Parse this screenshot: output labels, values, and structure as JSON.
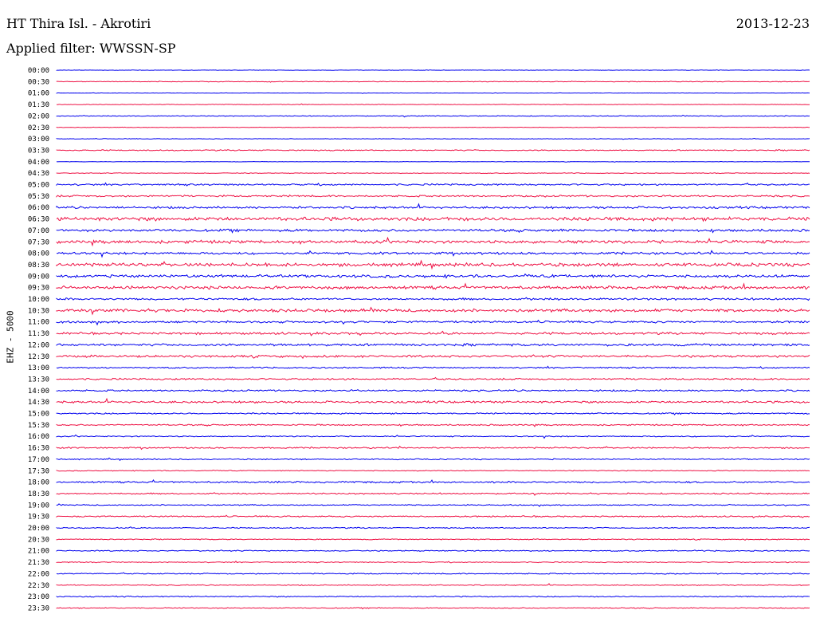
{
  "header": {
    "station": "HT Thira Isl. - Akrotiri",
    "date": "2013-12-23",
    "filter": "Applied filter: WWSSN-SP",
    "channel": "EHZ - 5000"
  },
  "colors": {
    "blue": "#0000ee",
    "red": "#ee1144",
    "black": "#000000"
  },
  "chart_data": {
    "type": "helicorder",
    "row_labels": [
      "00:00",
      "00:30",
      "01:00",
      "01:30",
      "02:00",
      "02:30",
      "03:00",
      "03:30",
      "04:00",
      "04:30",
      "05:00",
      "05:30",
      "06:00",
      "06:30",
      "07:00",
      "07:30",
      "08:00",
      "08:30",
      "09:00",
      "09:30",
      "10:00",
      "10:30",
      "11:00",
      "11:30",
      "12:00",
      "12:30",
      "13:00",
      "13:30",
      "14:00",
      "14:30",
      "15:00",
      "15:30",
      "16:00",
      "16:30",
      "17:00",
      "17:30",
      "18:00",
      "18:30",
      "19:00",
      "19:30",
      "20:00",
      "20:30",
      "21:00",
      "21:30",
      "22:00",
      "22:30",
      "23:00",
      "23:30"
    ],
    "row_colors": [
      "blue",
      "red",
      "blue",
      "red",
      "blue",
      "red",
      "blue",
      "red",
      "blue",
      "red",
      "blue",
      "red",
      "blue",
      "red",
      "blue",
      "red",
      "blue",
      "red",
      "blue",
      "red",
      "blue",
      "red",
      "blue",
      "red",
      "blue",
      "red",
      "blue",
      "red",
      "blue",
      "red",
      "blue",
      "red",
      "blue",
      "red",
      "blue",
      "red",
      "blue",
      "red",
      "blue",
      "red",
      "blue",
      "red",
      "blue",
      "red",
      "blue",
      "red",
      "blue",
      "red"
    ],
    "noise_level": [
      0.3,
      0.5,
      0.3,
      0.4,
      0.6,
      0.4,
      0.4,
      0.8,
      0.3,
      0.5,
      1.2,
      1.3,
      1.6,
      2.6,
      1.8,
      2.2,
      1.6,
      2.4,
      2.0,
      2.2,
      1.5,
      2.2,
      1.5,
      1.6,
      1.7,
      1.6,
      1.0,
      1.2,
      1.2,
      1.5,
      1.0,
      1.0,
      0.8,
      1.0,
      0.8,
      0.6,
      1.2,
      1.0,
      0.8,
      1.0,
      0.8,
      0.7,
      0.8,
      0.7,
      0.8,
      0.7,
      0.8,
      0.7
    ]
  }
}
